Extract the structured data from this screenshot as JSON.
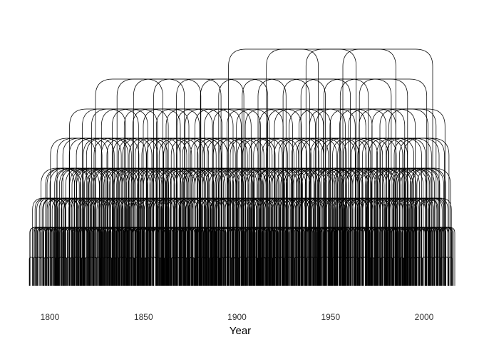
{
  "chart_data": {
    "type": "arc-timeline",
    "title": "",
    "xlabel": "Year",
    "ylabel": "",
    "xlim": [
      1789,
      2015
    ],
    "x_ticks": [
      1800,
      1850,
      1900,
      1950,
      2000
    ],
    "grid": false,
    "legend": "none",
    "y_axis_shown": false,
    "line_color": "#000000",
    "series": [
      {
        "span_years": 2,
        "coverage": [
          1789,
          2015
        ],
        "arcs": "all consecutive two-year terms"
      },
      {
        "span_years": 6,
        "coverage": [
          1789,
          2015
        ],
        "arcs": "dense overlapping six-year terms"
      },
      {
        "span_years": 12,
        "coverage": [
          1790,
          2014
        ],
        "arcs": "frequent overlapping terms"
      },
      {
        "span_years": 18,
        "coverage": [
          1795,
          2013
        ],
        "arcs": "many overlapping terms"
      },
      {
        "span_years": 24,
        "coverage": [
          1800,
          2012
        ],
        "arcs": "scattered long terms"
      },
      {
        "span_years": 30,
        "coverage": [
          1810,
          2010
        ],
        "arcs": "occasional long terms"
      },
      {
        "span_years": 36,
        "coverage": [
          1821,
          2008
        ],
        "arcs": "rare long terms"
      },
      {
        "span_years": 48,
        "coverage": [
          1895,
          2003
        ],
        "arcs": "very rare"
      },
      {
        "span_years": 54,
        "coverage": [
          1961,
          2013
        ],
        "arcs": "longest terms, rising from about 1961 to 2013"
      }
    ],
    "annotations": []
  },
  "icons": {
    "background_color": "#ffffff",
    "text_color": "#333333"
  }
}
